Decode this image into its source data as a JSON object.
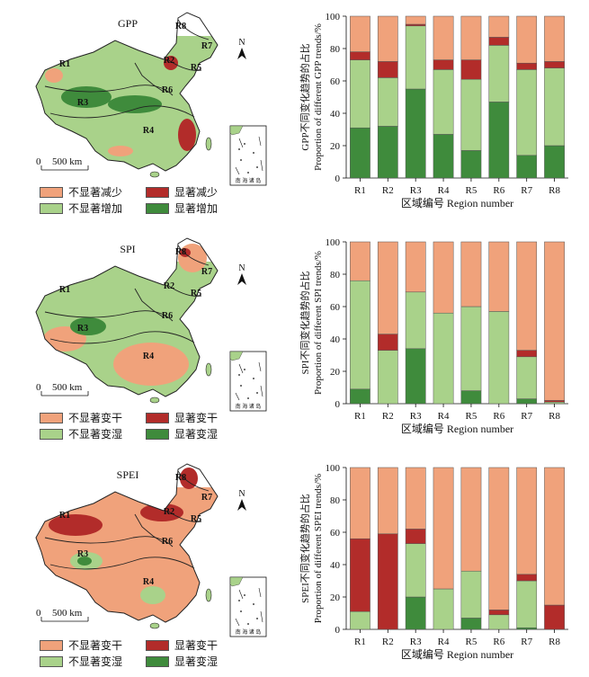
{
  "colors": {
    "insig_decrease": "#f0a27b",
    "sig_decrease": "#b22c2a",
    "insig_increase": "#a9d28a",
    "sig_increase": "#3f8b3c",
    "sea": "#ffffff",
    "boundary": "#222222"
  },
  "maps": [
    {
      "title": "GPP",
      "scale_label": "500 km",
      "scale_zero": "0",
      "north": "N",
      "inset_text": "南 海 诸 岛",
      "legend": [
        "不显著减少",
        "显著减少",
        "不显著增加",
        "显著增加"
      ],
      "regions": [
        "R1",
        "R2",
        "R3",
        "R4",
        "R5",
        "R6",
        "R7",
        "R8"
      ]
    },
    {
      "title": "SPI",
      "scale_label": "500 km",
      "scale_zero": "0",
      "north": "N",
      "inset_text": "南 海 诸 岛",
      "legend": [
        "不显著变干",
        "显著变干",
        "不显著变湿",
        "显著变湿"
      ],
      "regions": [
        "R1",
        "R2",
        "R3",
        "R4",
        "R5",
        "R6",
        "R7",
        "R8"
      ]
    },
    {
      "title": "SPEI",
      "scale_label": "500 km",
      "scale_zero": "0",
      "north": "N",
      "inset_text": "南 海 诸 岛",
      "legend": [
        "不显著变干",
        "显著变干",
        "不显著变湿",
        "显著变湿"
      ],
      "regions": [
        "R1",
        "R2",
        "R3",
        "R4",
        "R5",
        "R6",
        "R7",
        "R8"
      ]
    }
  ],
  "chart_data": [
    {
      "type": "bar",
      "stacked": true,
      "categories": [
        "R1",
        "R2",
        "R3",
        "R4",
        "R5",
        "R6",
        "R7",
        "R8"
      ],
      "xlabel": "区域编号  Region number",
      "ylabel_cn": "GPP不同变化趋势的占比",
      "ylabel_en": "Proportion of different GPP trends/%",
      "ylim": [
        0,
        100
      ],
      "yticks": [
        0,
        20,
        40,
        60,
        80,
        100
      ],
      "series": [
        {
          "legend_index": 3,
          "values": [
            31,
            32,
            55,
            27,
            17,
            47,
            14,
            20
          ]
        },
        {
          "legend_index": 2,
          "values": [
            42,
            30,
            39,
            40,
            44,
            35,
            53,
            48
          ]
        },
        {
          "legend_index": 1,
          "values": [
            5,
            10,
            1,
            6,
            12,
            5,
            4,
            4
          ]
        },
        {
          "legend_index": 0,
          "values": [
            22,
            28,
            5,
            27,
            27,
            13,
            29,
            28
          ]
        }
      ]
    },
    {
      "type": "bar",
      "stacked": true,
      "categories": [
        "R1",
        "R2",
        "R3",
        "R4",
        "R5",
        "R6",
        "R7",
        "R8"
      ],
      "xlabel": "区域编号  Region number",
      "ylabel_cn": "SPI不同变化趋势的占比",
      "ylabel_en": "Proportion of different SPI trends/%",
      "ylim": [
        0,
        100
      ],
      "yticks": [
        0,
        20,
        40,
        60,
        80,
        100
      ],
      "series": [
        {
          "legend_index": 3,
          "values": [
            9,
            0,
            34,
            0,
            8,
            0,
            3,
            0
          ]
        },
        {
          "legend_index": 2,
          "values": [
            67,
            33,
            35,
            56,
            52,
            57,
            26,
            1
          ]
        },
        {
          "legend_index": 1,
          "values": [
            0,
            10,
            0,
            0,
            0,
            0,
            4,
            1
          ]
        },
        {
          "legend_index": 0,
          "values": [
            24,
            57,
            31,
            44,
            40,
            43,
            67,
            98
          ]
        }
      ]
    },
    {
      "type": "bar",
      "stacked": true,
      "categories": [
        "R1",
        "R2",
        "R3",
        "R4",
        "R5",
        "R6",
        "R7",
        "R8"
      ],
      "xlabel": "区域编号  Region number",
      "ylabel_cn": "SPEI不同变化趋势的占比",
      "ylabel_en": "Proportion of different SPEI trends/%",
      "ylim": [
        0,
        100
      ],
      "yticks": [
        0,
        20,
        40,
        60,
        80,
        100
      ],
      "series": [
        {
          "legend_index": 3,
          "values": [
            0,
            0,
            20,
            0,
            7,
            0,
            1,
            0
          ]
        },
        {
          "legend_index": 2,
          "values": [
            11,
            0,
            33,
            25,
            29,
            9,
            29,
            0
          ]
        },
        {
          "legend_index": 1,
          "values": [
            45,
            59,
            9,
            0,
            0,
            3,
            4,
            15
          ]
        },
        {
          "legend_index": 0,
          "values": [
            44,
            41,
            38,
            75,
            64,
            88,
            66,
            85
          ]
        }
      ]
    }
  ]
}
